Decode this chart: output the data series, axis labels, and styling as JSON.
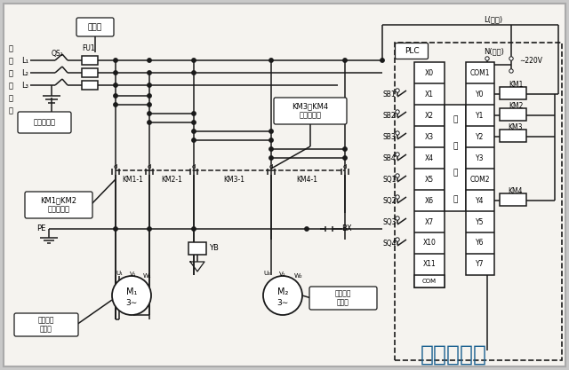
{
  "bg_color": "#c8c8c8",
  "inner_bg": "#f2f0ec",
  "lc": "#1a1a1a",
  "watermark": "自动秒链接",
  "wm_color": "#1a6090",
  "fig_width": 6.4,
  "fig_height": 4.17,
  "dpi": 100,
  "power_labels": [
    "三",
    "相",
    "供",
    "电",
    "电",
    "源"
  ],
  "L_labels": [
    "L₁",
    "L₂",
    "L₃"
  ],
  "x_inputs": [
    "X0",
    "X1",
    "X2",
    "X3",
    "X4",
    "X5",
    "X6",
    "X7",
    "X10",
    "X11"
  ],
  "y_outputs": [
    "COM1",
    "Y0",
    "Y1",
    "Y2",
    "Y3",
    "COM2",
    "Y4",
    "Y5",
    "Y6",
    "Y7"
  ],
  "sb_sq": [
    "SB1",
    "SB2",
    "SB3",
    "SB4",
    "SQ1",
    "SQ2",
    "SQ3",
    "SQ4"
  ],
  "km_coils": [
    "KM1",
    "KM2",
    "KM3",
    "KM4"
  ]
}
